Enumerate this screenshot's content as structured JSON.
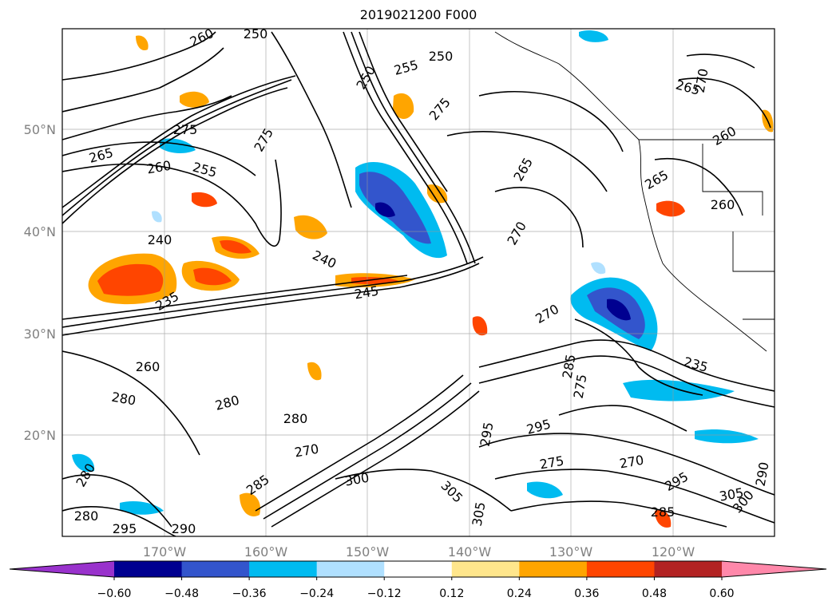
{
  "title": "2019021200 F000",
  "lat_labels": [
    "50°N",
    "40°N",
    "30°N",
    "20°N"
  ],
  "lon_labels": [
    "170°W",
    "160°W",
    "150°W",
    "140°W",
    "130°W",
    "120°W"
  ],
  "colorbar": {
    "extend_low_color": "#9932cc",
    "extend_high_color": "#ff88aa",
    "bins": [
      "#000090",
      "#3355cc",
      "#00bbf0",
      "#b0e0ff",
      "#ffffff",
      "#ffe68c",
      "#ffa500",
      "#ff4500",
      "#b22222"
    ],
    "tick_labels": [
      "−0.60",
      "−0.48",
      "−0.36",
      "−0.24",
      "−0.12",
      "0.12",
      "0.24",
      "0.36",
      "0.48",
      "0.60"
    ]
  },
  "contour_labels": [
    "260",
    "250",
    "255",
    "250",
    "265",
    "270",
    "275",
    "265",
    "260",
    "255",
    "275",
    "275",
    "250",
    "265",
    "270",
    "260",
    "265",
    "260",
    "240",
    "240",
    "235",
    "245",
    "270",
    "275",
    "235",
    "260",
    "280",
    "280",
    "280",
    "270",
    "295",
    "295",
    "285",
    "275",
    "270",
    "280",
    "285",
    "300",
    "305",
    "305",
    "285",
    "305",
    "300",
    "295",
    "290",
    "280",
    "295",
    "290"
  ]
}
